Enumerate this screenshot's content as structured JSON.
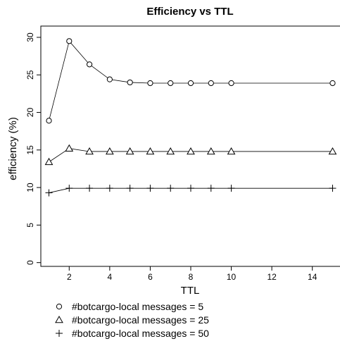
{
  "chart_data": {
    "type": "line",
    "title": "Efficiency vs TTL",
    "xlabel": "TTL",
    "ylabel": "efficiency (%)",
    "xlim": [
      0.6,
      15.4
    ],
    "ylim": [
      -0.5,
      31.5
    ],
    "xticks": [
      2,
      4,
      6,
      8,
      10,
      12,
      14
    ],
    "yticks": [
      0,
      5,
      10,
      15,
      20,
      25,
      30
    ],
    "grid": false,
    "legend_position": "bottom",
    "series": [
      {
        "name": "#botcargo-local messages = 5",
        "marker": "circle",
        "x": [
          1,
          2,
          3,
          4,
          5,
          6,
          7,
          8,
          9,
          10,
          15
        ],
        "y": [
          18.9,
          29.5,
          26.4,
          24.4,
          24.0,
          23.9,
          23.9,
          23.9,
          23.9,
          23.9,
          23.9
        ]
      },
      {
        "name": "#botcargo-local messages = 25",
        "marker": "triangle",
        "x": [
          1,
          2,
          3,
          4,
          5,
          6,
          7,
          8,
          9,
          10,
          15
        ],
        "y": [
          13.4,
          15.2,
          14.8,
          14.8,
          14.8,
          14.8,
          14.8,
          14.8,
          14.8,
          14.8,
          14.8
        ]
      },
      {
        "name": "#botcargo-local messages = 50",
        "marker": "plus",
        "x": [
          1,
          2,
          3,
          4,
          5,
          6,
          7,
          8,
          9,
          10,
          15
        ],
        "y": [
          9.3,
          9.9,
          9.9,
          9.9,
          9.9,
          9.9,
          9.9,
          9.9,
          9.9,
          9.9,
          9.9
        ]
      }
    ]
  }
}
